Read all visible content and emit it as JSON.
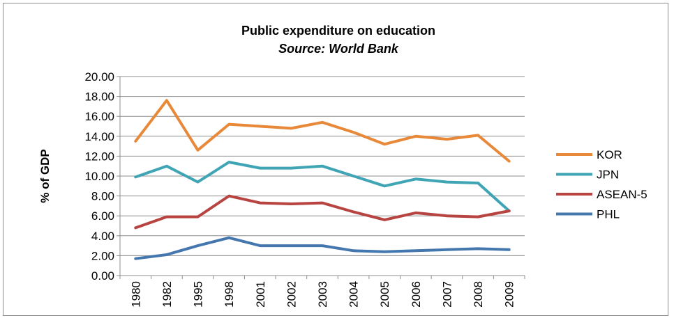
{
  "chart_data": {
    "type": "line",
    "title": "Public expenditure on education",
    "subtitle": "Source: World Bank",
    "ylabel": "% of GDP",
    "xlabel": "",
    "categories": [
      "1980",
      "1982",
      "1995",
      "1998",
      "2001",
      "2002",
      "2003",
      "2004",
      "2005",
      "2006",
      "2007",
      "2008",
      "2009"
    ],
    "ylim": [
      0,
      20
    ],
    "yticks": [
      "0.00",
      "2.00",
      "4.00",
      "6.00",
      "8.00",
      "10.00",
      "12.00",
      "14.00",
      "16.00",
      "18.00",
      "20.00"
    ],
    "grid": true,
    "legend_position": "right",
    "series": [
      {
        "name": "KOR",
        "color": "#E8893A",
        "values": [
          13.5,
          17.6,
          12.6,
          15.2,
          15.0,
          14.8,
          15.4,
          14.4,
          13.2,
          14.0,
          13.7,
          14.1,
          11.5
        ]
      },
      {
        "name": "JPN",
        "color": "#3FA5B5",
        "values": [
          9.9,
          11.0,
          9.4,
          11.4,
          10.8,
          10.8,
          11.0,
          10.0,
          9.0,
          9.7,
          9.4,
          9.3,
          6.5
        ]
      },
      {
        "name": "ASEAN-5",
        "color": "#B74440",
        "values": [
          4.8,
          5.9,
          5.9,
          8.0,
          7.3,
          7.2,
          7.3,
          6.4,
          5.6,
          6.3,
          6.0,
          5.9,
          6.5
        ]
      },
      {
        "name": "PHL",
        "color": "#4577AF",
        "values": [
          1.7,
          2.1,
          3.0,
          3.8,
          3.0,
          3.0,
          3.0,
          2.5,
          2.4,
          2.5,
          2.6,
          2.7,
          2.6
        ]
      }
    ]
  }
}
